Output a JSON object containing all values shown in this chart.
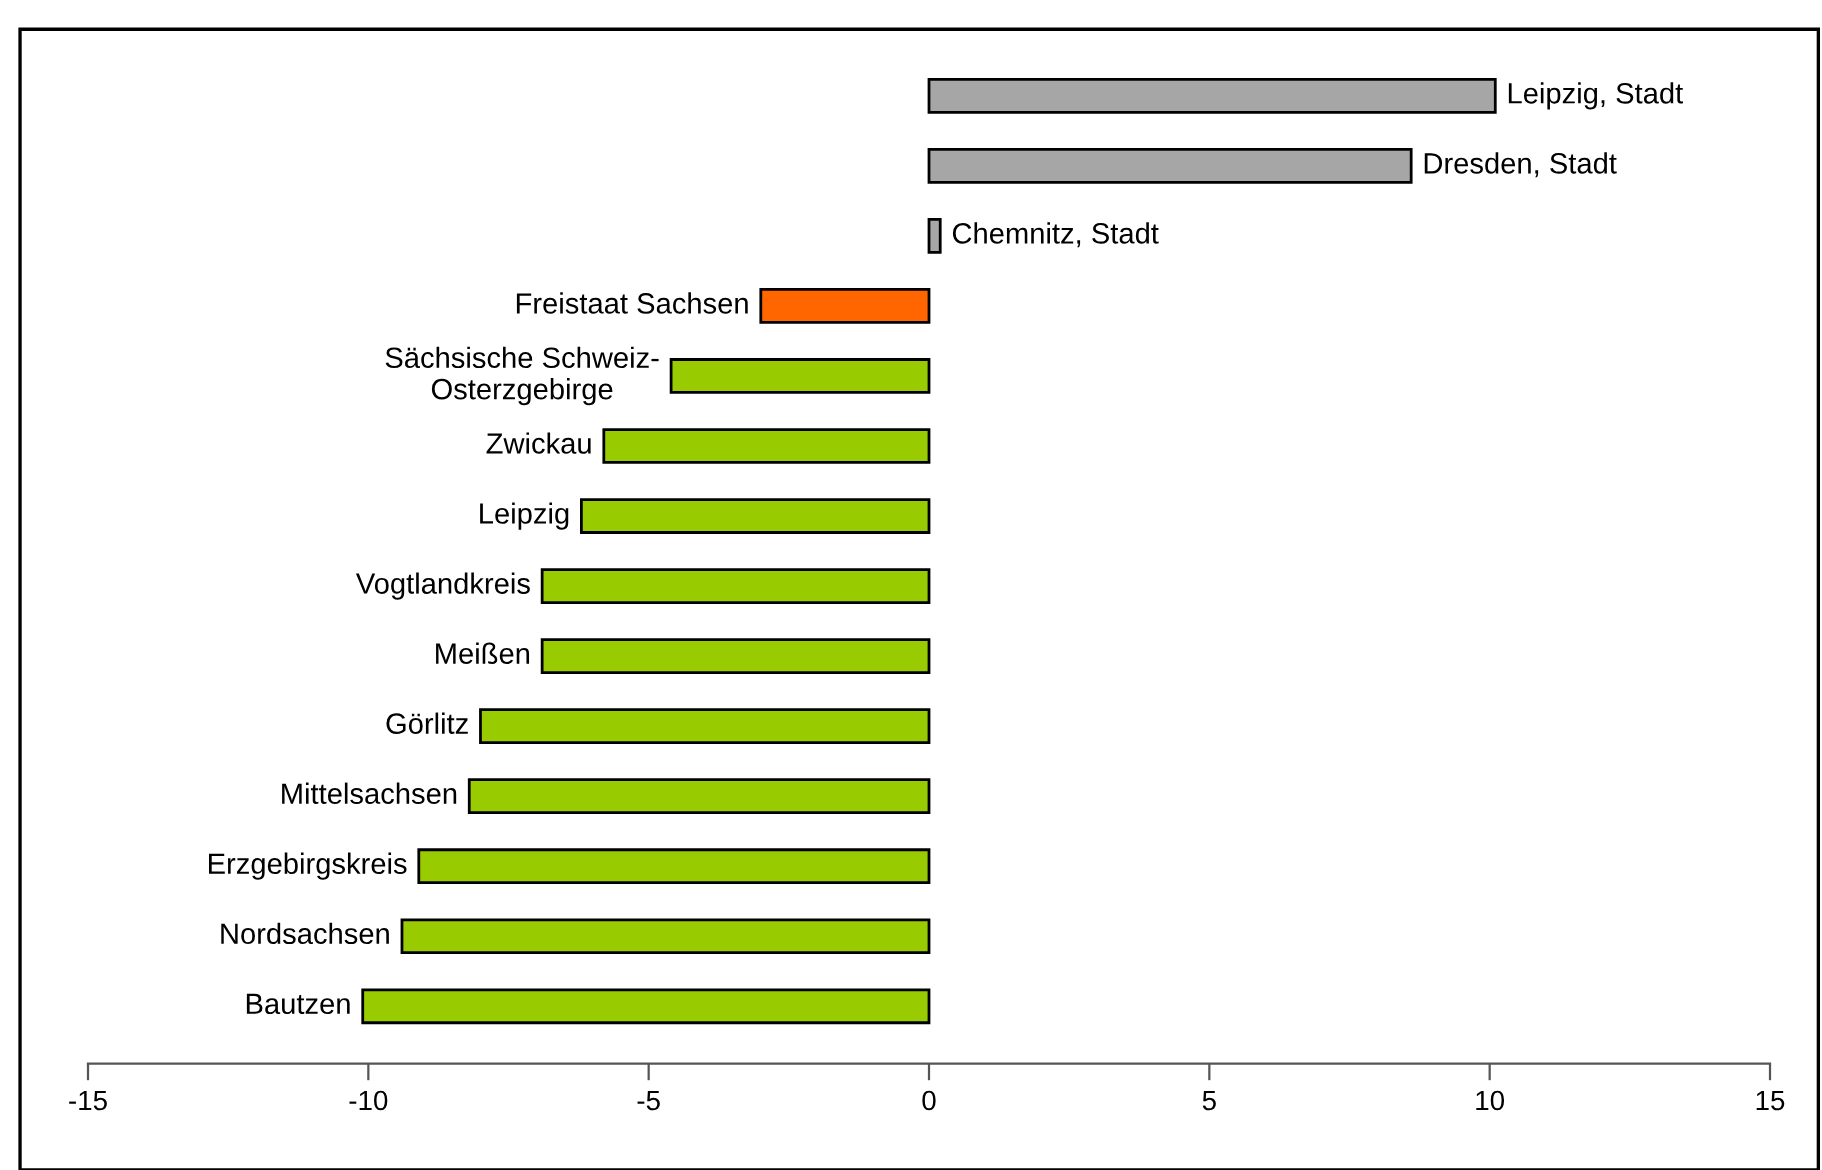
{
  "chart_data": {
    "type": "bar",
    "orientation": "horizontal",
    "categories": [
      "Leipzig, Stadt",
      "Dresden, Stadt",
      "Chemnitz, Stadt",
      "Freistaat Sachsen",
      "Sächsische Schweiz-\nOsterzgebirge",
      "Zwickau",
      "Leipzig",
      "Vogtlandkreis",
      "Meißen",
      "Görlitz",
      "Mittelsachsen",
      "Erzgebirgskreis",
      "Nordsachsen",
      "Bautzen"
    ],
    "values": [
      10.1,
      8.6,
      0.2,
      -3.0,
      -4.6,
      -5.8,
      -6.2,
      -6.9,
      -6.9,
      -8.0,
      -8.2,
      -9.1,
      -9.4,
      -10.1
    ],
    "colors": [
      "#a6a6a6",
      "#a6a6a6",
      "#a6a6a6",
      "#ff6600",
      "#99cc00",
      "#99cc00",
      "#99cc00",
      "#99cc00",
      "#99cc00",
      "#99cc00",
      "#99cc00",
      "#99cc00",
      "#99cc00",
      "#99cc00"
    ],
    "xlim": [
      -15,
      15
    ],
    "xticks": [
      -15,
      -10,
      -5,
      0,
      5,
      10,
      15
    ],
    "grid": false,
    "legend": false
  }
}
